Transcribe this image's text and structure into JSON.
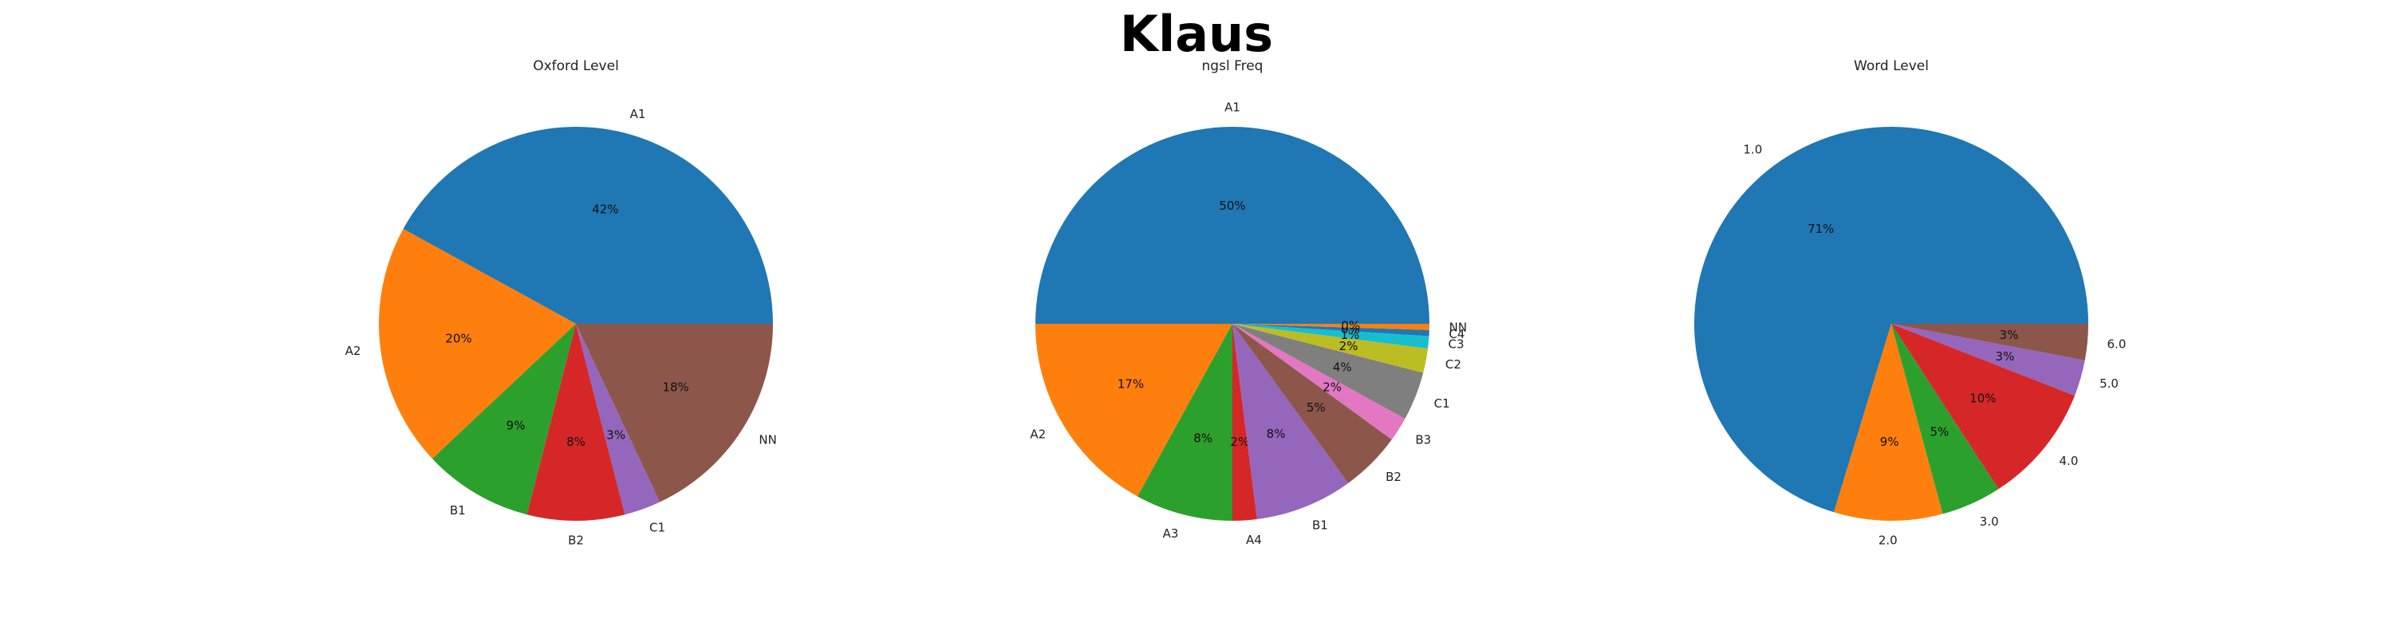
{
  "figure_title": "Klaus",
  "chart_data": [
    {
      "type": "pie",
      "title": "Oxford Level",
      "labels": [
        "A1",
        "A2",
        "B1",
        "B2",
        "C1",
        "NN"
      ],
      "values": [
        42,
        20,
        9,
        8,
        3,
        18
      ],
      "pct_labels": [
        "42%",
        "20%",
        "9%",
        "8%",
        "3%",
        "18%"
      ],
      "colors": [
        "#1f77b4",
        "#ff7f0e",
        "#2ca02c",
        "#d62728",
        "#9467bd",
        "#8c564b"
      ],
      "start_angle_deg": 0,
      "direction": "counterclockwise"
    },
    {
      "type": "pie",
      "title": "ngsl Freq",
      "labels": [
        "A1",
        "A2",
        "A3",
        "A4",
        "B1",
        "B2",
        "B3",
        "C1",
        "C2",
        "C3",
        "C4",
        "NN"
      ],
      "values": [
        50,
        17,
        8,
        2,
        8,
        5,
        2,
        4,
        2,
        1,
        0.5,
        0.5
      ],
      "pct_labels": [
        "50%",
        "17%",
        "8%",
        "2%",
        "8%",
        "5%",
        "2%",
        "4%",
        "2%",
        "1%",
        "0%",
        "0%"
      ],
      "colors": [
        "#1f77b4",
        "#ff7f0e",
        "#2ca02c",
        "#d62728",
        "#9467bd",
        "#8c564b",
        "#e377c2",
        "#7f7f7f",
        "#bcbd22",
        "#17becf",
        "#1f77b4",
        "#ff7f0e"
      ],
      "start_angle_deg": 0,
      "direction": "counterclockwise"
    },
    {
      "type": "pie",
      "title": "Word Level",
      "labels": [
        "1.0",
        "2.0",
        "3.0",
        "4.0",
        "5.0",
        "6.0"
      ],
      "values": [
        71,
        9,
        5,
        10,
        3,
        3
      ],
      "pct_labels": [
        "71%",
        "9%",
        "5%",
        "10%",
        "3%",
        "3%"
      ],
      "colors": [
        "#1f77b4",
        "#ff7f0e",
        "#2ca02c",
        "#d62728",
        "#9467bd",
        "#8c564b"
      ],
      "start_angle_deg": 0,
      "direction": "counterclockwise"
    }
  ]
}
